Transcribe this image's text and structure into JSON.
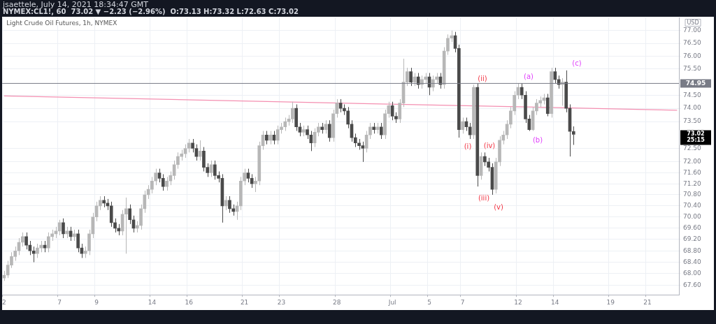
{
  "chart_data": {
    "type": "candlestick",
    "title": "jsaettele, July 14, 2021 18:34:47 GMT",
    "subtitle": "NYMEX:CL1!, 60  73.02 ▼ −2.23 (−2.96%)  O:73.13 H:73.32 L:72.63 C:73.02",
    "ylabel": "USD",
    "log": true,
    "colors": [
      "#b7b7b7",
      "#b7b7b7",
      "#b7b7b7",
      "#b7b7b7",
      "#b7b7b7",
      "#b7b7b7",
      "#4a4a4a",
      "#4a4a4a",
      "#4a4a4a",
      "#b7b7b7",
      "#b7b7b7",
      "#4a4a4a",
      "#b7b7b7",
      "#b7b7b7",
      "#b7b7b7",
      "#b7b7b7",
      "#4a4a4a",
      "#b7b7b7",
      "#4a4a4a",
      "#b7b7b7",
      "#4a4a4a",
      "#4a4a4a",
      "#b7b7b7",
      "#b7b7b7",
      "#b7b7b7",
      "#b7b7b7",
      "#b7b7b7",
      "#4a4a4a",
      "#4a4a4a",
      "#4a4a4a",
      "#4a4a4a",
      "#4a4a4a",
      "#b7b7b7",
      "#b7b7b7",
      "#4a4a4a",
      "#4a4a4a",
      "#b7b7b7",
      "#b7b7b7",
      "#b7b7b7",
      "#b7b7b7",
      "#b7b7b7",
      "#b7b7b7",
      "#4a4a4a",
      "#4a4a4a",
      "#b7b7b7",
      "#b7b7b7",
      "#b7b7b7",
      "#b7b7b7",
      "#b7b7b7",
      "#b7b7b7",
      "#b7b7b7",
      "#4a4a4a",
      "#4a4a4a",
      "#b7b7b7",
      "#4a4a4a",
      "#4a4a4a",
      "#b7b7b7",
      "#4a4a4a",
      "#4a4a4a",
      "#4a4a4a",
      "#b7b7b7",
      "#4a4a4a",
      "#4a4a4a",
      "#b7b7b7",
      "#b7b7b7",
      "#b7b7b7",
      "#4a4a4a",
      "#4a4a4a",
      "#b7b7b7",
      "#b7b7b7",
      "#b7b7b7",
      "#4a4a4a",
      "#b7b7b7",
      "#4a4a4a",
      "#b7b7b7",
      "#b7b7b7",
      "#b7b7b7",
      "#b7b7b7",
      "#b7b7b7",
      "#4a4a4a",
      "#4a4a4a",
      "#b7b7b7",
      "#4a4a4a",
      "#4a4a4a",
      "#b7b7b7",
      "#b7b7b7",
      "#4a4a4a",
      "#b7b7b7",
      "#4a4a4a",
      "#b7b7b7",
      "#b7b7b7",
      "#4a4a4a",
      "#4a4a4a",
      "#4a4a4a",
      "#4a4a4a",
      "#4a4a4a",
      "#4a4a4a",
      "#4a4a4a",
      "#b7b7b7",
      "#b7b7b7",
      "#4a4a4a",
      "#b7b7b7",
      "#4a4a4a",
      "#b7b7b7",
      "#b7b7b7",
      "#4a4a4a",
      "#4a4a4a",
      "#b7b7b7",
      "#b7b7b7",
      "#b7b7b7",
      "#4a4a4a",
      "#b7b7b7",
      "#4a4a4a",
      "#b7b7b7",
      "#b7b7b7",
      "#4a4a4a",
      "#b7b7b7",
      "#b7b7b7",
      "#4a4a4a",
      "#b7b7b7",
      "#b7b7b7",
      "#b7b7b7",
      "#4a4a4a",
      "#4a4a4a",
      "#b7b7b7",
      "#4a4a4a",
      "#4a4a4a",
      "#b7b7b7",
      "#4a4a4a",
      "#b7b7b7",
      "#4a4a4a",
      "#4a4a4a",
      "#4a4a4a",
      "#b7b7b7",
      "#b7b7b7",
      "#b7b7b7",
      "#b7b7b7",
      "#b7b7b7",
      "#b7b7b7",
      "#b7b7b7",
      "#4a4a4a",
      "#4a4a4a",
      "#4a4a4a",
      "#b7b7b7",
      "#b7b7b7",
      "#b7b7b7",
      "#b7b7b7",
      "#4a4a4a",
      "#b7b7b7",
      "#4a4a4a",
      "#4a4a4a",
      "#b7b7b7",
      "#4a4a4a",
      "#4a4a4a",
      "#4a4a4a",
      null,
      null,
      null,
      null,
      null,
      null,
      null,
      null,
      null,
      null,
      null,
      null,
      null,
      null,
      null,
      null,
      null,
      null,
      null,
      null,
      null,
      null,
      null,
      null,
      null,
      null,
      null,
      null
    ],
    "grid": true,
    "categories": [
      "2",
      null,
      null,
      null,
      null,
      null,
      null,
      null,
      null,
      null,
      null,
      null,
      null,
      null,
      null,
      "7",
      null,
      null,
      null,
      null,
      null,
      null,
      null,
      null,
      null,
      "9",
      null,
      null,
      null,
      null,
      null,
      null,
      null,
      null,
      null,
      null,
      null,
      null,
      null,
      null,
      "14",
      null,
      null,
      null,
      null,
      null,
      null,
      null,
      null,
      null,
      "16",
      null,
      null,
      null,
      null,
      null,
      null,
      null,
      null,
      null,
      null,
      null,
      null,
      null,
      null,
      "21",
      null,
      null,
      null,
      null,
      null,
      null,
      null,
      null,
      null,
      "23",
      null,
      null,
      null,
      null,
      null,
      null,
      null,
      null,
      null,
      null,
      null,
      null,
      null,
      null,
      "28",
      null,
      null,
      null,
      null,
      null,
      null,
      null,
      null,
      null,
      null,
      null,
      null,
      null,
      null,
      "Jul",
      null,
      null,
      null,
      null,
      null,
      null,
      null,
      null,
      null,
      "5",
      null,
      null,
      null,
      null,
      null,
      null,
      null,
      null,
      "7",
      null,
      null,
      null,
      null,
      null,
      null,
      null,
      null,
      null,
      null,
      null,
      null,
      null,
      null,
      "12",
      null,
      null,
      null,
      null,
      null,
      null,
      null,
      null,
      null,
      "14",
      null,
      null,
      null,
      null,
      null,
      null,
      null,
      null,
      null,
      null,
      null,
      null,
      null,
      null,
      "19",
      null,
      null,
      null,
      null,
      null,
      null,
      null,
      null,
      null,
      "21",
      null,
      null,
      null,
      null,
      null,
      null,
      null,
      null
    ],
    "ylim": [
      67.27,
      77.52
    ],
    "yticks": [
      {
        "value": 67.6,
        "label": "67.60"
      },
      {
        "value": 68,
        "label": "68.00"
      },
      {
        "value": 68.4,
        "label": "68.40"
      },
      {
        "value": 68.8,
        "label": "68.80"
      },
      {
        "value": 69.2,
        "label": "69.20"
      },
      {
        "value": 69.6,
        "label": "69.60"
      },
      {
        "value": 70,
        "label": "70.00"
      },
      {
        "value": 70.4,
        "label": "70.40"
      },
      {
        "value": 70.8,
        "label": "70.80"
      },
      {
        "value": 71.2,
        "label": "71.20"
      },
      {
        "value": 71.6,
        "label": "71.60"
      },
      {
        "value": 72,
        "label": "72.00"
      },
      {
        "value": 72.5,
        "label": "72.50"
      },
      {
        "value": 73.5,
        "label": "73.50"
      },
      {
        "value": 74,
        "label": "74.00"
      },
      {
        "value": 74.5,
        "label": "74.50"
      },
      {
        "value": 75.5,
        "label": "75.50"
      },
      {
        "value": 76,
        "label": "76.00"
      },
      {
        "value": 76.5,
        "label": "76.50"
      },
      {
        "value": 77,
        "label": "77.00"
      }
    ],
    "ohlc": [
      [
        67.85,
        68.1,
        67.75,
        67.95
      ],
      [
        67.95,
        68.45,
        67.85,
        68.3
      ],
      [
        68.3,
        68.75,
        68.2,
        68.6
      ],
      [
        68.6,
        68.95,
        68.45,
        68.8
      ],
      [
        68.8,
        69.25,
        68.65,
        69.1
      ],
      [
        69.1,
        69.45,
        68.95,
        69.3
      ],
      [
        69.3,
        69.45,
        68.85,
        69.0
      ],
      [
        69.0,
        69.15,
        68.65,
        68.8
      ],
      [
        68.8,
        68.95,
        68.4,
        68.7
      ],
      [
        68.7,
        69.05,
        68.55,
        68.9
      ],
      [
        68.9,
        69.15,
        68.75,
        69.0
      ],
      [
        69.0,
        69.15,
        68.75,
        68.9
      ],
      [
        68.9,
        69.45,
        68.75,
        69.3
      ],
      [
        69.3,
        69.55,
        69.15,
        69.4
      ],
      [
        69.4,
        69.65,
        69.25,
        69.5
      ],
      [
        69.5,
        69.9,
        69.35,
        69.8
      ],
      [
        69.8,
        69.95,
        69.25,
        69.4
      ],
      [
        69.4,
        69.65,
        69.25,
        69.5
      ],
      [
        69.5,
        69.65,
        69.15,
        69.3
      ],
      [
        69.3,
        69.55,
        69.15,
        69.4
      ],
      [
        69.4,
        69.55,
        68.75,
        68.9
      ],
      [
        68.9,
        69.05,
        68.55,
        68.7
      ],
      [
        68.7,
        68.95,
        68.55,
        68.8
      ],
      [
        68.8,
        69.55,
        68.65,
        69.4
      ],
      [
        69.4,
        70.15,
        69.25,
        70.0
      ],
      [
        70.0,
        70.55,
        69.85,
        70.4
      ],
      [
        70.4,
        70.75,
        70.25,
        70.6
      ],
      [
        70.6,
        70.75,
        70.35,
        70.5
      ],
      [
        70.5,
        70.65,
        70.25,
        70.4
      ],
      [
        70.4,
        70.55,
        69.65,
        69.8
      ],
      [
        69.8,
        69.95,
        69.45,
        69.6
      ],
      [
        69.6,
        69.75,
        69.35,
        69.5
      ],
      [
        69.5,
        70.25,
        69.35,
        70.1
      ],
      [
        70.1,
        70.7,
        68.7,
        70.3
      ],
      [
        70.3,
        70.45,
        69.75,
        69.9
      ],
      [
        69.9,
        70.05,
        69.45,
        69.6
      ],
      [
        69.6,
        69.85,
        69.45,
        69.7
      ],
      [
        69.7,
        70.45,
        69.55,
        70.3
      ],
      [
        70.3,
        70.95,
        70.15,
        70.8
      ],
      [
        70.8,
        71.15,
        70.65,
        71.0
      ],
      [
        71.0,
        71.45,
        70.85,
        71.3
      ],
      [
        71.3,
        71.75,
        71.15,
        71.6
      ],
      [
        71.6,
        71.75,
        71.25,
        71.4
      ],
      [
        71.4,
        71.55,
        70.95,
        71.1
      ],
      [
        71.1,
        71.45,
        70.95,
        71.3
      ],
      [
        71.3,
        71.65,
        71.15,
        71.5
      ],
      [
        71.5,
        72.05,
        71.35,
        71.9
      ],
      [
        71.9,
        72.35,
        71.75,
        72.2
      ],
      [
        72.2,
        72.45,
        72.05,
        72.3
      ],
      [
        72.3,
        72.65,
        72.15,
        72.5
      ],
      [
        72.5,
        72.85,
        72.35,
        72.7
      ],
      [
        72.7,
        72.85,
        72.35,
        72.5
      ],
      [
        72.5,
        72.65,
        72.05,
        72.2
      ],
      [
        72.2,
        72.8,
        72.05,
        72.4
      ],
      [
        72.4,
        72.55,
        71.65,
        71.8
      ],
      [
        71.8,
        71.95,
        71.45,
        71.6
      ],
      [
        71.6,
        72.05,
        71.45,
        71.9
      ],
      [
        71.9,
        72.05,
        71.35,
        71.5
      ],
      [
        71.5,
        71.65,
        71.25,
        71.4
      ],
      [
        71.4,
        71.55,
        69.8,
        70.4
      ],
      [
        70.4,
        70.75,
        70.25,
        70.6
      ],
      [
        70.6,
        70.75,
        70.15,
        70.3
      ],
      [
        70.3,
        70.45,
        70.05,
        70.2
      ],
      [
        70.2,
        70.55,
        69.9,
        70.4
      ],
      [
        70.4,
        71.45,
        70.25,
        71.3
      ],
      [
        71.3,
        71.75,
        71.15,
        71.6
      ],
      [
        71.6,
        71.75,
        71.25,
        71.4
      ],
      [
        71.4,
        71.55,
        71.05,
        71.2
      ],
      [
        71.2,
        71.45,
        70.9,
        71.3
      ],
      [
        71.3,
        72.75,
        71.15,
        72.6
      ],
      [
        72.6,
        73.15,
        72.45,
        73.0
      ],
      [
        73.0,
        73.15,
        72.65,
        72.8
      ],
      [
        72.8,
        73.15,
        72.65,
        73.0
      ],
      [
        73.0,
        73.15,
        72.65,
        72.8
      ],
      [
        72.8,
        73.35,
        72.65,
        73.2
      ],
      [
        73.2,
        73.45,
        73.05,
        73.3
      ],
      [
        73.3,
        73.65,
        73.15,
        73.5
      ],
      [
        73.5,
        73.75,
        73.35,
        73.6
      ],
      [
        73.6,
        74.25,
        73.45,
        74.0
      ],
      [
        74.0,
        74.15,
        73.15,
        73.3
      ],
      [
        73.3,
        73.45,
        72.95,
        73.1
      ],
      [
        73.1,
        73.35,
        72.95,
        73.2
      ],
      [
        73.2,
        73.35,
        72.85,
        73.0
      ],
      [
        73.0,
        73.15,
        72.4,
        72.7
      ],
      [
        72.7,
        73.25,
        72.55,
        73.1
      ],
      [
        73.1,
        73.45,
        72.95,
        73.3
      ],
      [
        73.3,
        73.45,
        73.05,
        73.2
      ],
      [
        73.2,
        73.55,
        73.05,
        73.4
      ],
      [
        73.4,
        73.55,
        72.75,
        72.9
      ],
      [
        72.9,
        73.95,
        72.75,
        73.8
      ],
      [
        73.8,
        74.35,
        73.65,
        74.2
      ],
      [
        74.2,
        74.35,
        73.85,
        74.0
      ],
      [
        74.0,
        74.15,
        73.75,
        73.9
      ],
      [
        73.9,
        74.05,
        73.25,
        73.4
      ],
      [
        73.4,
        73.55,
        72.75,
        72.9
      ],
      [
        72.9,
        73.05,
        72.55,
        72.7
      ],
      [
        72.7,
        72.85,
        72.45,
        72.6
      ],
      [
        72.6,
        72.75,
        72.0,
        72.5
      ],
      [
        72.5,
        73.15,
        72.35,
        73.0
      ],
      [
        73.0,
        73.45,
        72.85,
        73.3
      ],
      [
        73.3,
        73.45,
        73.05,
        73.2
      ],
      [
        73.2,
        73.45,
        73.05,
        73.3
      ],
      [
        73.3,
        73.45,
        72.85,
        73.0
      ],
      [
        73.0,
        73.95,
        72.85,
        73.8
      ],
      [
        73.8,
        74.25,
        73.65,
        74.1
      ],
      [
        74.1,
        74.25,
        73.55,
        73.7
      ],
      [
        73.7,
        73.85,
        73.45,
        73.6
      ],
      [
        73.6,
        74.35,
        73.45,
        74.2
      ],
      [
        74.2,
        75.9,
        74.05,
        75.0
      ],
      [
        75.0,
        75.55,
        74.85,
        75.4
      ],
      [
        75.4,
        75.55,
        74.85,
        75.0
      ],
      [
        75.0,
        75.35,
        74.85,
        75.2
      ],
      [
        75.2,
        75.35,
        74.75,
        74.9
      ],
      [
        74.9,
        75.25,
        74.75,
        75.1
      ],
      [
        75.1,
        75.35,
        74.95,
        75.2
      ],
      [
        75.2,
        75.35,
        74.5,
        74.8
      ],
      [
        74.8,
        75.25,
        74.65,
        75.1
      ],
      [
        75.1,
        75.35,
        74.95,
        75.2
      ],
      [
        75.2,
        75.35,
        74.75,
        74.9
      ],
      [
        74.9,
        76.35,
        74.75,
        76.2
      ],
      [
        76.2,
        76.85,
        76.05,
        76.7
      ],
      [
        76.7,
        77.0,
        76.55,
        76.8
      ],
      [
        76.8,
        76.95,
        76.15,
        76.3
      ],
      [
        76.3,
        76.45,
        72.9,
        73.2
      ],
      [
        73.2,
        73.65,
        73.05,
        73.5
      ],
      [
        73.5,
        73.65,
        73.15,
        73.3
      ],
      [
        73.3,
        73.45,
        72.85,
        73.0
      ],
      [
        73.0,
        74.9,
        72.85,
        74.8
      ],
      [
        74.8,
        74.95,
        71.1,
        71.5
      ],
      [
        71.5,
        72.35,
        71.35,
        72.2
      ],
      [
        72.2,
        72.35,
        71.85,
        72.0
      ],
      [
        72.0,
        72.15,
        71.65,
        71.8
      ],
      [
        71.8,
        71.95,
        70.8,
        71.0
      ],
      [
        71.0,
        72.15,
        70.85,
        72.0
      ],
      [
        72.0,
        72.95,
        71.85,
        72.8
      ],
      [
        72.8,
        73.15,
        72.65,
        73.0
      ],
      [
        73.0,
        73.55,
        72.85,
        73.4
      ],
      [
        73.4,
        74.05,
        73.25,
        73.9
      ],
      [
        73.9,
        74.65,
        73.75,
        74.5
      ],
      [
        74.5,
        74.95,
        74.35,
        74.8
      ],
      [
        74.8,
        74.95,
        74.35,
        74.5
      ],
      [
        74.5,
        74.65,
        73.45,
        73.6
      ],
      [
        73.6,
        73.75,
        73.15,
        73.2
      ],
      [
        73.2,
        74.05,
        73.15,
        73.9
      ],
      [
        73.9,
        74.35,
        73.75,
        74.2
      ],
      [
        74.2,
        74.45,
        74.05,
        74.3
      ],
      [
        74.3,
        74.55,
        74.15,
        74.4
      ],
      [
        74.4,
        74.55,
        73.7,
        73.8
      ],
      [
        73.8,
        75.55,
        73.65,
        75.4
      ],
      [
        75.4,
        75.55,
        74.95,
        75.1
      ],
      [
        75.1,
        75.25,
        74.75,
        74.9
      ],
      [
        74.9,
        75.15,
        74.1,
        75.0
      ],
      [
        75.0,
        75.45,
        73.85,
        74.0
      ],
      [
        74.0,
        74.15,
        72.2,
        73.13
      ],
      [
        73.13,
        73.32,
        72.63,
        73.02
      ],
      null,
      null,
      null,
      null,
      null,
      null,
      null,
      null,
      null,
      null,
      null,
      null,
      null,
      null,
      null,
      null,
      null,
      null,
      null,
      null,
      null,
      null,
      null,
      null,
      null,
      null,
      null,
      null
    ],
    "series": [
      {
        "type": "line",
        "color": "#f48fb1",
        "values": [
          74.47,
          null,
          null,
          null,
          null,
          null,
          null,
          null,
          null,
          null,
          null,
          null,
          null,
          null,
          null,
          null,
          null,
          null,
          null,
          null,
          null,
          null,
          null,
          null,
          null,
          null,
          null,
          null,
          null,
          null,
          null,
          null,
          null,
          null,
          null,
          null,
          null,
          null,
          null,
          null,
          null,
          null,
          null,
          null,
          null,
          null,
          null,
          null,
          null,
          null,
          null,
          null,
          null,
          null,
          null,
          null,
          null,
          null,
          null,
          null,
          null,
          null,
          null,
          null,
          null,
          null,
          null,
          null,
          null,
          null,
          null,
          null,
          null,
          null,
          null,
          null,
          null,
          null,
          null,
          null,
          null,
          null,
          null,
          null,
          null,
          null,
          null,
          null,
          null,
          null,
          null,
          null,
          null,
          null,
          null,
          null,
          null,
          null,
          null,
          null,
          null,
          null,
          null,
          null,
          null,
          null,
          null,
          null,
          null,
          null,
          null,
          null,
          null,
          null,
          null,
          null,
          null,
          null,
          null,
          null,
          null,
          null,
          null,
          null,
          null,
          null,
          null,
          null,
          null,
          null,
          null,
          null,
          null,
          null,
          null,
          null,
          null,
          null,
          null,
          null,
          null,
          null,
          null,
          null,
          null,
          null,
          null,
          null,
          null,
          null,
          null,
          null,
          null,
          null,
          null,
          null,
          null,
          null,
          null,
          null,
          null,
          null,
          null,
          null,
          null,
          null,
          null,
          null,
          null,
          null,
          null,
          null,
          null,
          null,
          null,
          null,
          null,
          null,
          null,
          null,
          null,
          null,
          73.93
        ]
      }
    ],
    "ref_lines": [
      {
        "axis": "y",
        "value": 74.95,
        "label": "74.95",
        "color": "#787b86"
      }
    ],
    "annotations": [
      "Light Crude Oil Futures, 1h, NYMEX",
      "73.02 25:15",
      "(i)",
      "(ii)",
      "(iii)",
      "(iv)",
      "(v)",
      "(a)",
      "(b)",
      "(c)"
    ]
  }
}
